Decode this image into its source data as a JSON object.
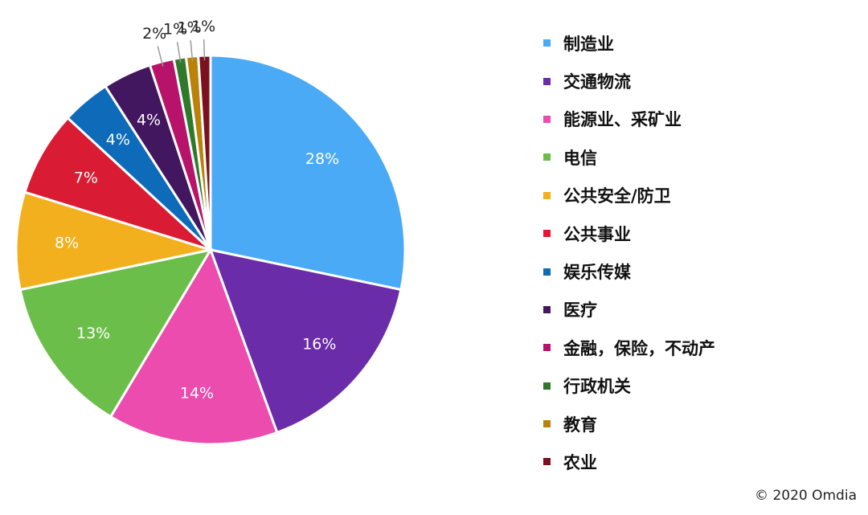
{
  "chart_data": {
    "type": "pie",
    "categories": [
      "制造业",
      "交通物流",
      "能源业、采矿业",
      "电信",
      "公共安全/防卫",
      "公共事业",
      "娱乐传媒",
      "医疗",
      "金融，保险，不动产",
      "行政机关",
      "教育",
      "农业"
    ],
    "values": [
      28,
      16,
      14,
      13,
      8,
      7,
      4,
      4,
      2,
      1,
      1,
      1
    ],
    "value_labels": [
      "28%",
      "16%",
      "14%",
      "13%",
      "8%",
      "7%",
      "4%",
      "4%",
      "2%",
      "1%",
      "1%",
      "1%"
    ],
    "colors": [
      "#4aaaf5",
      "#6a2ca8",
      "#ec4cad",
      "#6cbe4a",
      "#f2b01e",
      "#d91c33",
      "#0d6bba",
      "#43175f",
      "#b8136a",
      "#2f7a2a",
      "#b98208",
      "#7a1020"
    ],
    "legend_position": "right",
    "start_angle": "12 o'clock, clockwise"
  },
  "credit": "© 2020 Omdia"
}
